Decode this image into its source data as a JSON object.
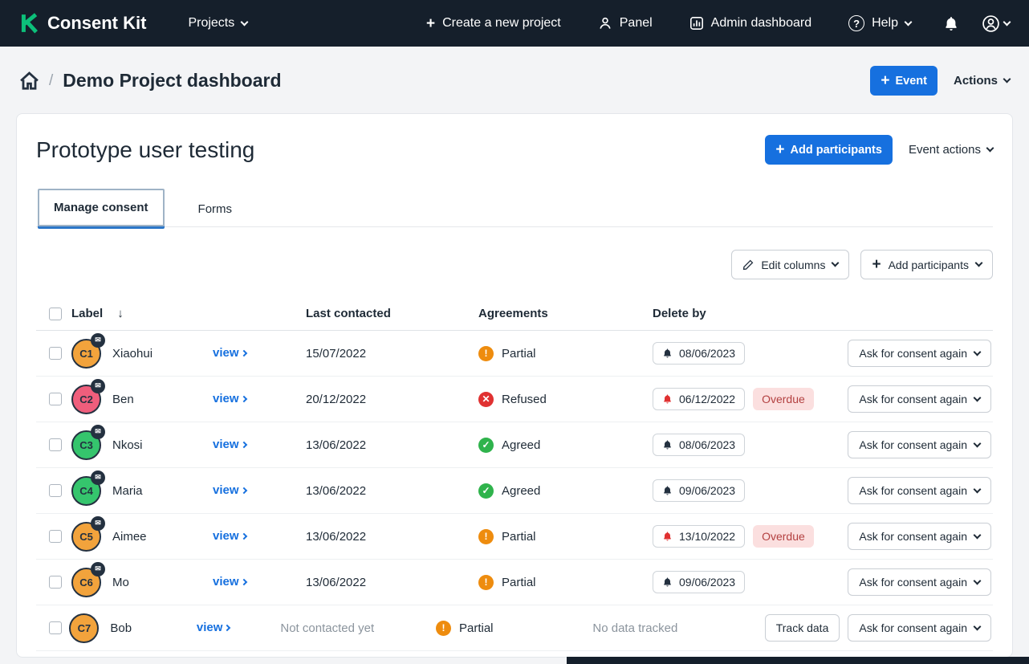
{
  "nav": {
    "brand": "Consent Kit",
    "projects": "Projects",
    "create_project": "Create a new project",
    "panel": "Panel",
    "admin_dashboard": "Admin dashboard",
    "help": "Help"
  },
  "icons": {
    "plus": "+",
    "question_mark": "?",
    "sort_desc": "↓",
    "envelope": "✉",
    "separator": "/"
  },
  "breadcrumb": {
    "page_title": "Demo Project dashboard",
    "event_button": "Event",
    "actions_button": "Actions"
  },
  "event": {
    "title": "Prototype user testing",
    "add_participants_button": "Add participants",
    "event_actions_button": "Event actions",
    "tabs": {
      "manage_consent": "Manage consent",
      "forms": "Forms"
    },
    "toolbar": {
      "edit_columns": "Edit columns",
      "add_participants": "Add participants"
    }
  },
  "table": {
    "headers": {
      "label": "Label",
      "last_contacted": "Last contacted",
      "agreements": "Agreements",
      "delete_by": "Delete by"
    },
    "view_label": "view",
    "ask_again_label": "Ask for consent again",
    "track_data_label": "Track data",
    "overdue_label": "Overdue",
    "no_data_label": "No data tracked",
    "status_glyphs": {
      "partial": "!",
      "refused": "✕",
      "agreed": "✓"
    },
    "rows": [
      {
        "id": "C1",
        "color": "#f2a33c",
        "name": "Xiaohui",
        "last_contacted": "15/07/2022",
        "not_contacted": false,
        "status": "Partial",
        "status_type": "partial",
        "delete_by": "08/06/2023",
        "overdue": false,
        "contacted_badge": true,
        "tracked": true
      },
      {
        "id": "C2",
        "color": "#ef5e7c",
        "name": "Ben",
        "last_contacted": "20/12/2022",
        "not_contacted": false,
        "status": "Refused",
        "status_type": "refused",
        "delete_by": "06/12/2022",
        "overdue": true,
        "contacted_badge": true,
        "tracked": true
      },
      {
        "id": "C3",
        "color": "#35c56d",
        "name": "Nkosi",
        "last_contacted": "13/06/2022",
        "not_contacted": false,
        "status": "Agreed",
        "status_type": "agreed",
        "delete_by": "08/06/2023",
        "overdue": false,
        "contacted_badge": true,
        "tracked": true
      },
      {
        "id": "C4",
        "color": "#35c56d",
        "name": "Maria",
        "last_contacted": "13/06/2022",
        "not_contacted": false,
        "status": "Agreed",
        "status_type": "agreed",
        "delete_by": "09/06/2023",
        "overdue": false,
        "contacted_badge": true,
        "tracked": true
      },
      {
        "id": "C5",
        "color": "#f2a33c",
        "name": "Aimee",
        "last_contacted": "13/06/2022",
        "not_contacted": false,
        "status": "Partial",
        "status_type": "partial",
        "delete_by": "13/10/2022",
        "overdue": true,
        "contacted_badge": true,
        "tracked": true
      },
      {
        "id": "C6",
        "color": "#f2a33c",
        "name": "Mo",
        "last_contacted": "13/06/2022",
        "not_contacted": false,
        "status": "Partial",
        "status_type": "partial",
        "delete_by": "09/06/2023",
        "overdue": false,
        "contacted_badge": true,
        "tracked": true
      },
      {
        "id": "C7",
        "color": "#f2a33c",
        "name": "Bob",
        "last_contacted": "Not contacted yet",
        "not_contacted": true,
        "status": "Partial",
        "status_type": "partial",
        "delete_by": "",
        "overdue": false,
        "contacted_badge": false,
        "tracked": false
      }
    ]
  },
  "colors": {
    "accent": "#1670df",
    "brand_green": "#0cc07a",
    "danger": "#e03131",
    "ink": "#243140"
  }
}
